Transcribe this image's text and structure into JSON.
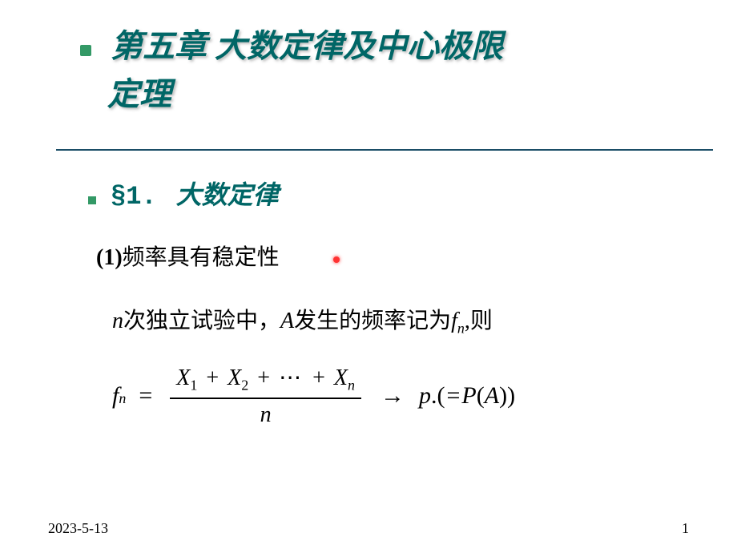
{
  "chapter": {
    "line1": "第五章 大数定律及中心极限",
    "line2": "定理"
  },
  "section": {
    "prefix": "§1.",
    "title": "大数定律"
  },
  "subheading": {
    "num": "(1)",
    "text": "频率具有稳定性"
  },
  "body": {
    "sentence_parts": {
      "n": "n",
      "t1": "次独立试验中，",
      "A": "A",
      "t2": "发生的频率记为",
      "f": "f",
      "fsub": "n",
      "t3": ",则"
    }
  },
  "formula": {
    "lhs_sym": "f",
    "lhs_sub": "n",
    "eq": "=",
    "numerator": {
      "X": "X",
      "sub1": "1",
      "sub2": "2",
      "subn": "n",
      "plus": "+",
      "dots": "⋯"
    },
    "denominator": "n",
    "arrow": "→",
    "p": "p",
    "dot": ".",
    "open": "(",
    "eq2": "=",
    "P": "P",
    "open2": "(",
    "A": "A",
    "close2": ")",
    "close": ")"
  },
  "footer": {
    "date": "2023-5-13",
    "page": "1"
  },
  "colors": {
    "title_color": "#006666",
    "bullet_color": "#339966",
    "divider_color": "#1a4d66",
    "laser_color": "#ff3333",
    "text_color": "#000000",
    "background": "#ffffff"
  }
}
